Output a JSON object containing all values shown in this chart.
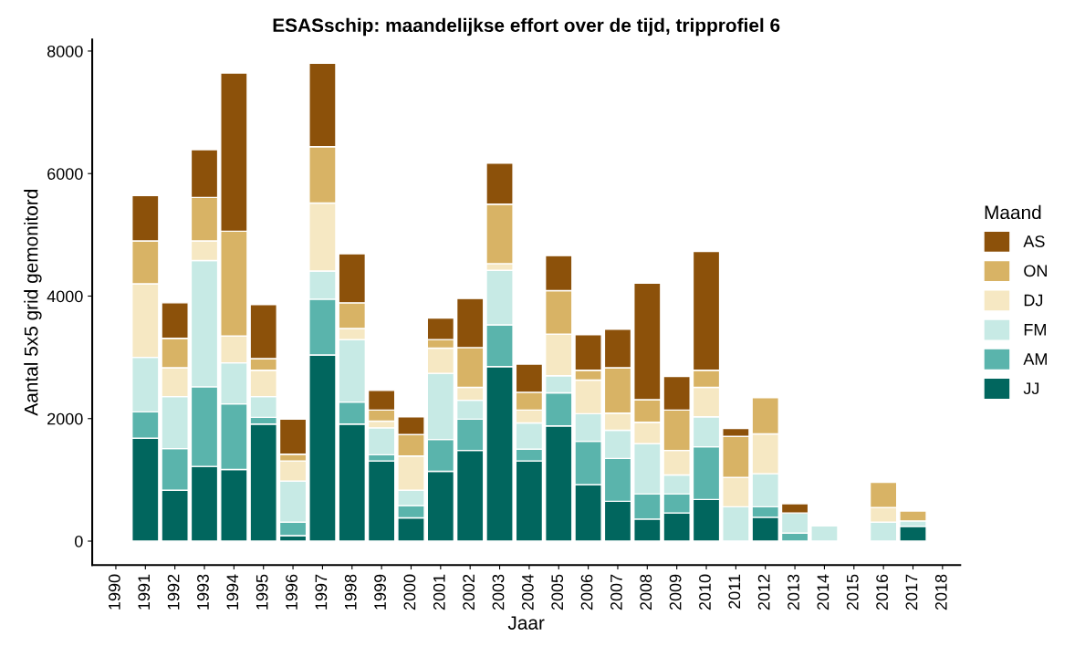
{
  "chart_data": {
    "type": "bar",
    "stacked": true,
    "title": "ESASschip: maandelijkse effort over de tijd, tripprofiel 6",
    "xlabel": "Jaar",
    "ylabel": "Aantal 5x5 grid gemonitord",
    "legend_title": "Maand",
    "legend": "right",
    "grid": false,
    "x": [
      1991,
      1992,
      1993,
      1994,
      1995,
      1996,
      1997,
      1998,
      1999,
      2000,
      2001,
      2002,
      2003,
      2004,
      2005,
      2006,
      2007,
      2008,
      2009,
      2010,
      2011,
      2012,
      2013,
      2014,
      2015,
      2016,
      2017
    ],
    "xlim": [
      1989.2,
      2018.6
    ],
    "xticks": [
      1990,
      1991,
      1992,
      1993,
      1994,
      1995,
      1996,
      1997,
      1998,
      1999,
      2000,
      2001,
      2002,
      2003,
      2004,
      2005,
      2006,
      2007,
      2008,
      2009,
      2010,
      2011,
      2012,
      2013,
      2014,
      2015,
      2016,
      2017,
      2018
    ],
    "ylim": [
      -390,
      8190
    ],
    "yticks": [
      0,
      2000,
      4000,
      6000,
      8000
    ],
    "series": [
      {
        "name": "JJ",
        "color": "#01665e",
        "values": [
          1680,
          830,
          1220,
          1170,
          1910,
          90,
          3040,
          1910,
          1310,
          380,
          1140,
          1480,
          2850,
          1310,
          1880,
          920,
          650,
          360,
          460,
          680,
          null,
          390,
          null,
          null,
          null,
          null,
          240
        ]
      },
      {
        "name": "AM",
        "color": "#5ab4ac",
        "values": [
          430,
          680,
          1300,
          1070,
          110,
          220,
          910,
          360,
          100,
          200,
          520,
          510,
          680,
          190,
          540,
          710,
          700,
          410,
          310,
          860,
          null,
          170,
          130,
          null,
          null,
          null,
          null
        ]
      },
      {
        "name": "FM",
        "color": "#c7eae5",
        "values": [
          890,
          850,
          2060,
          670,
          340,
          670,
          460,
          1020,
          440,
          250,
          1080,
          310,
          890,
          430,
          280,
          450,
          460,
          820,
          310,
          490,
          560,
          540,
          330,
          250,
          null,
          310,
          90
        ]
      },
      {
        "name": "DJ",
        "color": "#f6e8c3",
        "values": [
          1200,
          470,
          320,
          440,
          430,
          330,
          1110,
          180,
          110,
          560,
          410,
          210,
          110,
          210,
          680,
          550,
          280,
          350,
          400,
          480,
          480,
          650,
          null,
          null,
          null,
          240,
          null
        ]
      },
      {
        "name": "ON",
        "color": "#d8b365",
        "values": [
          700,
          480,
          710,
          1710,
          190,
          110,
          920,
          420,
          180,
          350,
          140,
          650,
          970,
          290,
          710,
          160,
          740,
          370,
          660,
          280,
          670,
          590,
          null,
          null,
          null,
          410,
          160
        ]
      },
      {
        "name": "AS",
        "color": "#8c510a",
        "values": [
          740,
          580,
          780,
          2580,
          880,
          570,
          1360,
          800,
          320,
          290,
          350,
          800,
          670,
          460,
          570,
          580,
          630,
          1900,
          550,
          1940,
          130,
          null,
          150,
          null,
          null,
          null,
          null
        ]
      }
    ]
  }
}
